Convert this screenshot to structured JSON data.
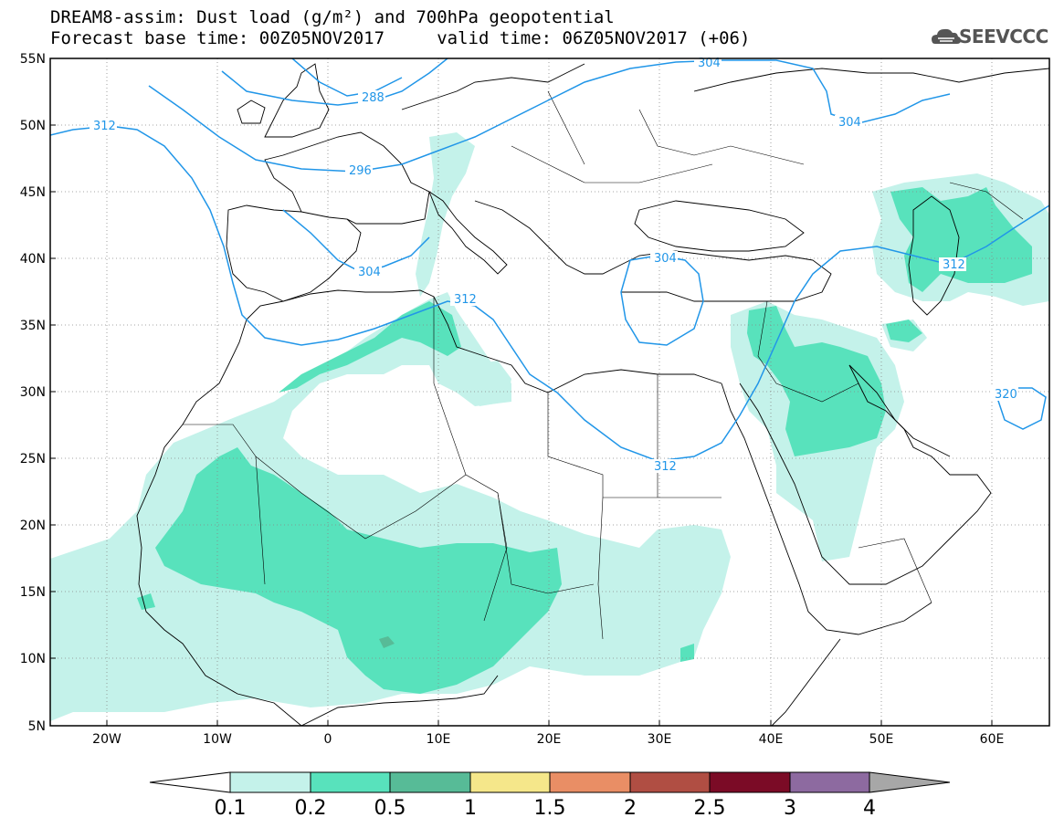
{
  "title": {
    "line1": "DREAM8-assim: Dust load (g/m²) and 700hPa geopotential",
    "line2": "Forecast base time: 00Z05NOV2017     valid time: 06Z05NOV2017 (+06)"
  },
  "logo": {
    "text": "SEEVCCC",
    "icon": "cloud-icon"
  },
  "map": {
    "lon_range": [
      -25,
      65
    ],
    "lat_range": [
      5,
      55
    ],
    "lat_labels": [
      "55N",
      "50N",
      "45N",
      "40N",
      "35N",
      "30N",
      "25N",
      "20N",
      "15N",
      "10N",
      "5N"
    ],
    "lon_labels": [
      "20W",
      "10W",
      "0",
      "10E",
      "20E",
      "30E",
      "40E",
      "50E",
      "60E"
    ],
    "contour_labels": [
      "312",
      "296",
      "288",
      "304",
      "304",
      "312",
      "304",
      "312",
      "312",
      "320",
      "304"
    ]
  },
  "colorbar": {
    "labels": [
      "0.1",
      "0.2",
      "0.5",
      "1",
      "1.5",
      "2",
      "2.5",
      "3",
      "4"
    ],
    "colors": [
      "#ffffff",
      "#c4f2ea",
      "#58e2bc",
      "#57bb97",
      "#f5e78a",
      "#e98e65",
      "#b04e43",
      "#7b0b26",
      "#8d6aa0",
      "#a7a7a7"
    ]
  },
  "colors": {
    "contour": "#2196e8",
    "dust_light": "#c4f2ea",
    "dust_mid": "#58e2bc",
    "dust_dark": "#57bb97"
  }
}
